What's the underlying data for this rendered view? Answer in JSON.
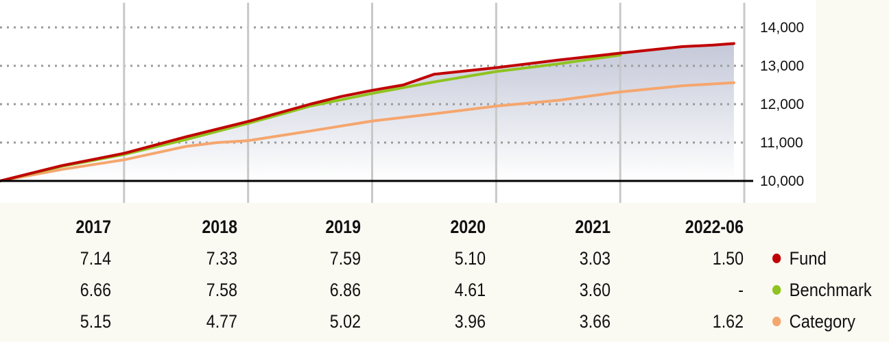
{
  "chart_data": {
    "type": "line",
    "y_ticks": [
      10000,
      11000,
      12000,
      13000,
      14000
    ],
    "y_tick_labels": [
      "10,000",
      "11,000",
      "12,000",
      "13,000",
      "14,000"
    ],
    "ylim": [
      10000,
      14000
    ],
    "xlim": [
      "2016-06",
      "2022-06"
    ],
    "x_gridlines": [
      "2017-06",
      "2018-06",
      "2019-06",
      "2020-06",
      "2021-06",
      "2022-06"
    ],
    "baseline": 10000,
    "series": [
      {
        "name": "Fund",
        "color": "#c00000",
        "points": [
          [
            "2016-06",
            10000
          ],
          [
            "2016-12",
            10400
          ],
          [
            "2017-06",
            10720
          ],
          [
            "2017-12",
            11150
          ],
          [
            "2018-06",
            11550
          ],
          [
            "2018-12",
            12000
          ],
          [
            "2019-03",
            12200
          ],
          [
            "2019-06",
            12360
          ],
          [
            "2019-09",
            12500
          ],
          [
            "2019-12",
            12780
          ],
          [
            "2020-06",
            12950
          ],
          [
            "2020-12",
            13150
          ],
          [
            "2021-06",
            13330
          ],
          [
            "2021-12",
            13500
          ],
          [
            "2022-03",
            13540
          ],
          [
            "2022-05",
            13580
          ]
        ]
      },
      {
        "name": "Benchmark",
        "color": "#8fc31f",
        "points": [
          [
            "2016-06",
            10000
          ],
          [
            "2016-12",
            10380
          ],
          [
            "2017-06",
            10690
          ],
          [
            "2017-12",
            11080
          ],
          [
            "2018-06",
            11500
          ],
          [
            "2018-12",
            11950
          ],
          [
            "2019-06",
            12280
          ],
          [
            "2019-12",
            12580
          ],
          [
            "2020-06",
            12850
          ],
          [
            "2020-12",
            13050
          ],
          [
            "2021-06",
            13280
          ]
        ]
      },
      {
        "name": "Category",
        "color": "#f5a66e",
        "points": [
          [
            "2016-06",
            10000
          ],
          [
            "2016-12",
            10300
          ],
          [
            "2017-06",
            10550
          ],
          [
            "2017-12",
            10900
          ],
          [
            "2018-03",
            11000
          ],
          [
            "2018-06",
            11050
          ],
          [
            "2018-12",
            11300
          ],
          [
            "2019-06",
            11560
          ],
          [
            "2019-12",
            11750
          ],
          [
            "2020-06",
            11950
          ],
          [
            "2020-12",
            12100
          ],
          [
            "2021-06",
            12320
          ],
          [
            "2021-12",
            12480
          ],
          [
            "2022-05",
            12560
          ]
        ]
      }
    ],
    "table": {
      "headers": [
        "2017",
        "2018",
        "2019",
        "2020",
        "2021",
        "2022-06"
      ],
      "rows": [
        {
          "name": "Fund",
          "color": "#c00000",
          "values": [
            "7.14",
            "7.33",
            "7.59",
            "5.10",
            "3.03",
            "1.50"
          ]
        },
        {
          "name": "Benchmark",
          "color": "#8fc31f",
          "values": [
            "6.66",
            "7.58",
            "6.86",
            "4.61",
            "3.60",
            "-"
          ]
        },
        {
          "name": "Category",
          "color": "#f5a66e",
          "values": [
            "5.15",
            "4.77",
            "5.02",
            "3.96",
            "3.66",
            "1.62"
          ]
        }
      ]
    }
  }
}
